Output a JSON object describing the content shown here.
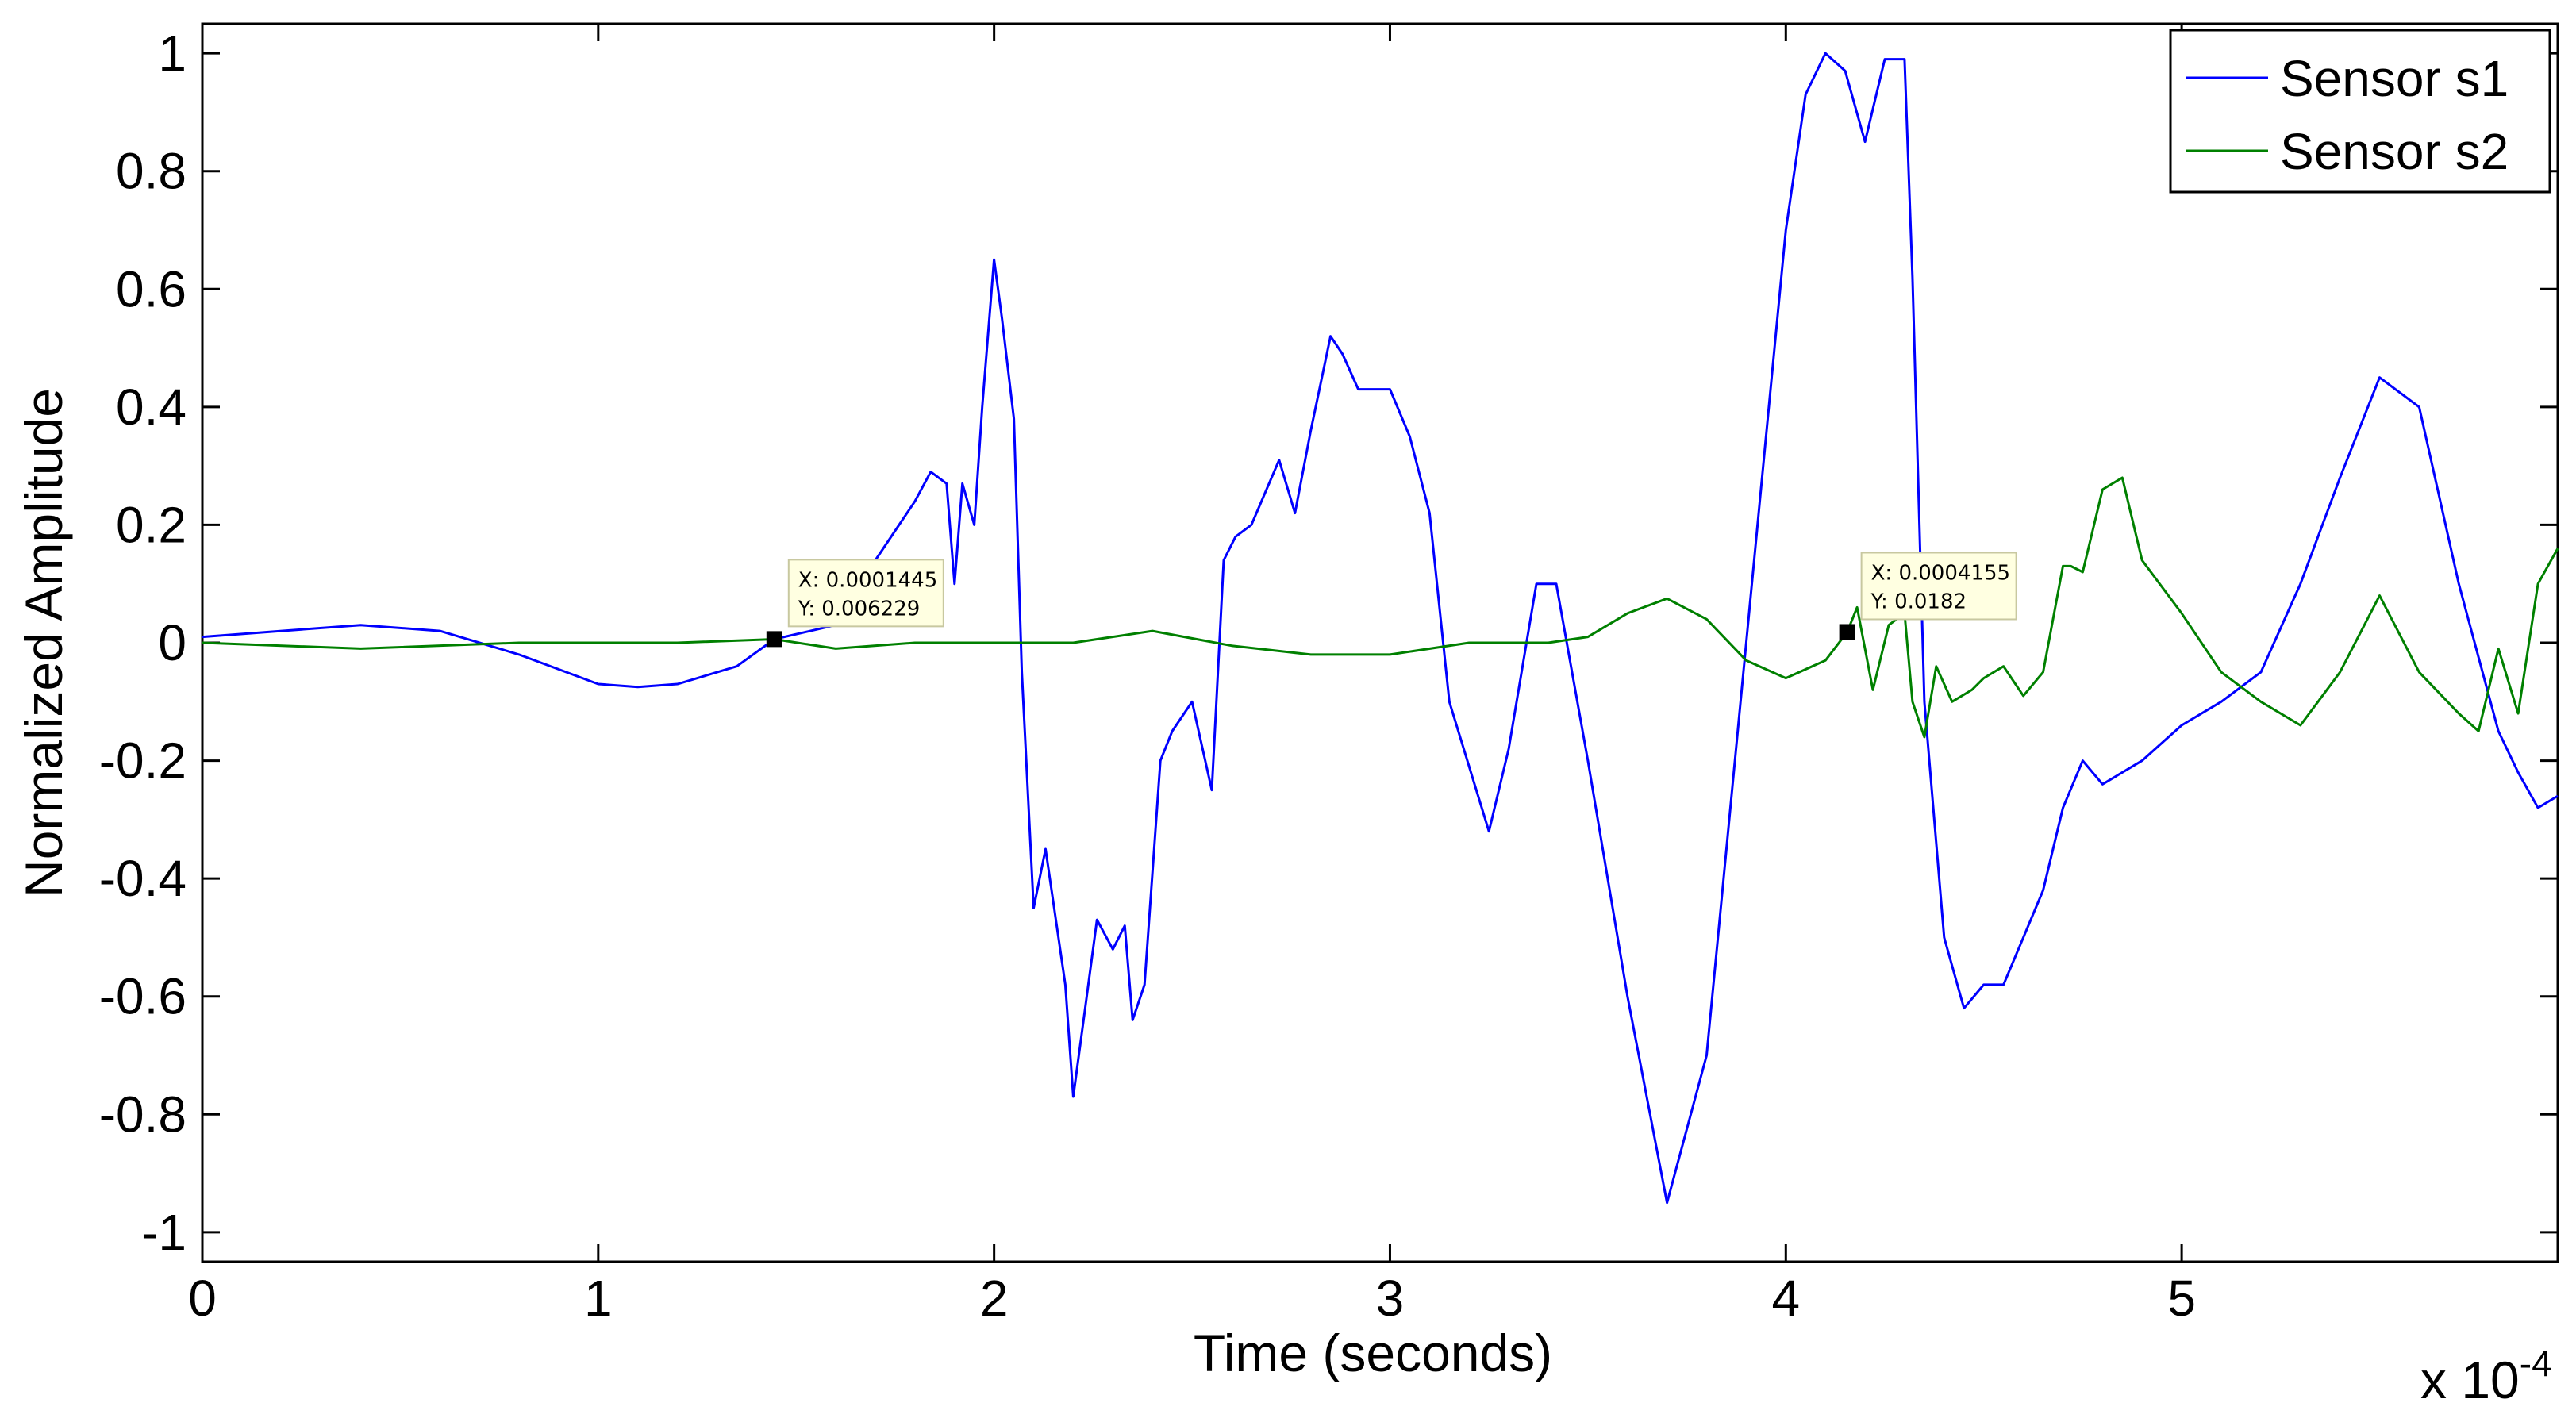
{
  "chart_data": {
    "type": "line",
    "title": "",
    "xlabel": "Time (seconds)",
    "ylabel": "Normalized Amplitude",
    "x_exponent_label": "x 10",
    "x_exponent_power": "-4",
    "xlim": [
      0,
      5.95
    ],
    "ylim": [
      -1.05,
      1.05
    ],
    "x_ticks": [
      0,
      1,
      2,
      3,
      4,
      5
    ],
    "x_tick_labels": [
      "0",
      "1",
      "2",
      "3",
      "4",
      "5"
    ],
    "y_ticks": [
      1,
      0.8,
      0.6,
      0.4,
      0.2,
      0,
      -0.2,
      -0.4,
      -0.6,
      -0.8,
      -1
    ],
    "y_tick_labels": [
      "1",
      "0.8",
      "0.6",
      "0.4",
      "0.2",
      "0",
      "-0.2",
      "-0.4",
      "-0.6",
      "-0.8",
      "-1"
    ],
    "grid": false,
    "legend_position": "top-right",
    "series": [
      {
        "name": "Sensor s1",
        "color": "#0000ff",
        "x": [
          0,
          0.2,
          0.4,
          0.6,
          0.8,
          1.0,
          1.1,
          1.2,
          1.35,
          1.445,
          1.6,
          1.7,
          1.8,
          1.84,
          1.88,
          1.9,
          1.92,
          1.95,
          1.97,
          2.0,
          2.02,
          2.05,
          2.07,
          2.1,
          2.13,
          2.18,
          2.2,
          2.23,
          2.26,
          2.3,
          2.33,
          2.35,
          2.38,
          2.42,
          2.45,
          2.5,
          2.55,
          2.58,
          2.61,
          2.65,
          2.72,
          2.76,
          2.8,
          2.85,
          2.88,
          2.92,
          3.0,
          3.05,
          3.1,
          3.15,
          3.25,
          3.3,
          3.37,
          3.42,
          3.5,
          3.6,
          3.7,
          3.8,
          3.9,
          4.0,
          4.05,
          4.1,
          4.15,
          4.2,
          4.25,
          4.3,
          4.32,
          4.35,
          4.4,
          4.45,
          4.5,
          4.55,
          4.6,
          4.65,
          4.7,
          4.75,
          4.8,
          4.9,
          5.0,
          5.1,
          5.2,
          5.3,
          5.4,
          5.5,
          5.6,
          5.7,
          5.8,
          5.85,
          5.9,
          5.95
        ],
        "y": [
          0.01,
          0.02,
          0.03,
          0.02,
          -0.02,
          -0.07,
          -0.075,
          -0.07,
          -0.04,
          0.006,
          0.03,
          0.14,
          0.24,
          0.29,
          0.27,
          0.1,
          0.27,
          0.2,
          0.4,
          0.65,
          0.55,
          0.38,
          -0.05,
          -0.45,
          -0.35,
          -0.58,
          -0.77,
          -0.62,
          -0.47,
          -0.52,
          -0.48,
          -0.64,
          -0.58,
          -0.2,
          -0.15,
          -0.1,
          -0.25,
          0.14,
          0.18,
          0.2,
          0.31,
          0.22,
          0.36,
          0.52,
          0.49,
          0.43,
          0.43,
          0.35,
          0.22,
          -0.1,
          -0.32,
          -0.18,
          0.1,
          0.1,
          -0.2,
          -0.6,
          -0.95,
          -0.7,
          0.0,
          0.7,
          0.93,
          1.0,
          0.97,
          0.85,
          0.99,
          0.99,
          0.62,
          -0.1,
          -0.5,
          -0.62,
          -0.58,
          -0.58,
          -0.5,
          -0.42,
          -0.28,
          -0.2,
          -0.24,
          -0.2,
          -0.14,
          -0.1,
          -0.05,
          0.1,
          0.28,
          0.45,
          0.4,
          0.1,
          -0.15,
          -0.22,
          -0.28,
          -0.26
        ]
      },
      {
        "name": "Sensor s2",
        "color": "#008000",
        "x": [
          0,
          0.4,
          0.8,
          1.0,
          1.2,
          1.445,
          1.6,
          1.8,
          2.0,
          2.2,
          2.4,
          2.6,
          2.8,
          3.0,
          3.2,
          3.4,
          3.5,
          3.6,
          3.7,
          3.8,
          3.9,
          4.0,
          4.1,
          4.155,
          4.18,
          4.22,
          4.26,
          4.3,
          4.32,
          4.35,
          4.38,
          4.42,
          4.47,
          4.5,
          4.55,
          4.6,
          4.65,
          4.7,
          4.72,
          4.75,
          4.8,
          4.85,
          4.9,
          5.0,
          5.1,
          5.2,
          5.3,
          5.4,
          5.5,
          5.6,
          5.7,
          5.75,
          5.8,
          5.85,
          5.9,
          5.95
        ],
        "y": [
          0.0,
          -0.01,
          0.0,
          0.0,
          0.0,
          0.006,
          -0.01,
          0.0,
          0.0,
          0.0,
          0.02,
          -0.005,
          -0.02,
          -0.02,
          0.0,
          0.0,
          0.01,
          0.05,
          0.075,
          0.04,
          -0.03,
          -0.06,
          -0.03,
          0.018,
          0.06,
          -0.08,
          0.03,
          0.05,
          -0.1,
          -0.16,
          -0.04,
          -0.1,
          -0.08,
          -0.06,
          -0.04,
          -0.09,
          -0.05,
          0.13,
          0.13,
          0.12,
          0.26,
          0.28,
          0.14,
          0.05,
          -0.05,
          -0.1,
          -0.14,
          -0.05,
          0.08,
          -0.05,
          -0.12,
          -0.15,
          -0.01,
          -0.12,
          0.1,
          0.16
        ]
      }
    ],
    "data_tips": [
      {
        "x_label": "X: 0.0001445",
        "y_label": "Y: 0.006229",
        "x": 1.445,
        "y": 0.006229
      },
      {
        "x_label": "X: 0.0004155",
        "y_label": "Y: 0.0182",
        "x": 4.155,
        "y": 0.0182
      }
    ]
  }
}
